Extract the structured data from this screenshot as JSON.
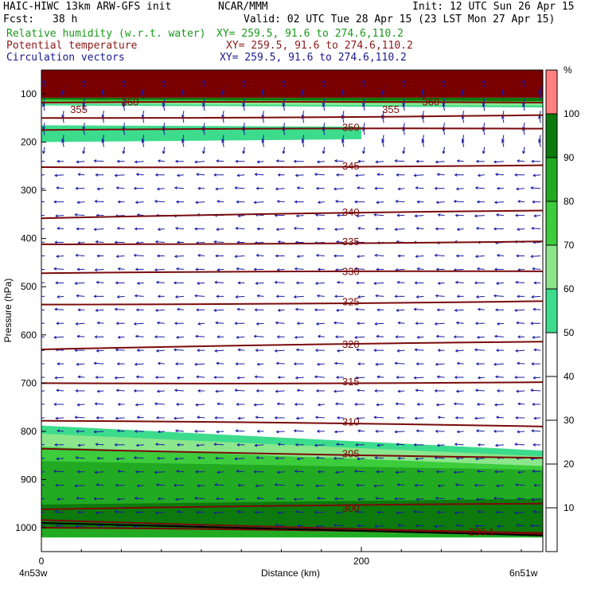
{
  "header": {
    "title": "HAIC-HIWC 13km ARW-GFS init",
    "org": "NCAR/MMM",
    "init": "Init: 12 UTC Sun 26 Apr 15",
    "fcst_label": "Fcst:",
    "fcst_value": "38 h",
    "valid": "Valid: 02 UTC Tue 28 Apr 15 (23 LST Mon 27 Apr 15)"
  },
  "fields": [
    {
      "name": "Relative humidity (w.r.t. water)",
      "xy": "XY= 259.5, 91.6 to 274.6,110.2",
      "color": "#1a9a1a"
    },
    {
      "name": "Potential temperature",
      "xy": "XY= 259.5, 91.6 to 274.6,110.2",
      "color": "#8b1a1a"
    },
    {
      "name": "Circulation vectors",
      "xy": "XY= 259.5, 91.6 to 274.6,110.2",
      "color": "#1a1a8a"
    }
  ],
  "colors": {
    "theta": "#7a0a0a",
    "vector": "#1a1aa0",
    "terrain": "#000000",
    "rh_levels": [
      "#ffffff",
      "#ffffff",
      "#ffffff",
      "#ffffff",
      "#ffffff",
      "#3cdc8c",
      "#8ce68c",
      "#3ccc3c",
      "#22aa22",
      "#0c7a0c",
      "#ff8080"
    ]
  },
  "chart_data": {
    "type": "heatmap",
    "description_axis_labels": true,
    "xlabel": "Distance (km)",
    "ylabel": "Pressure (hPa)",
    "x_ticks": [
      0,
      200
    ],
    "x_end_labels": [
      "4n53w",
      "6n51w"
    ],
    "xlim": [
      0,
      314
    ],
    "y_ticks": [
      100,
      200,
      300,
      400,
      500,
      600,
      700,
      800,
      900,
      1000
    ],
    "ylim": [
      50,
      1050
    ],
    "colorbar": {
      "unit": "%",
      "ticks": [
        10,
        20,
        30,
        40,
        50,
        60,
        70,
        80,
        90,
        100
      ],
      "range": [
        0,
        110
      ]
    },
    "theta_contours": [
      {
        "label": "360",
        "p_left": 118,
        "p_right": 118
      },
      {
        "label": "355",
        "p_left": 150,
        "p_right": 144
      },
      {
        "label": "350",
        "p_left": 175,
        "p_right": 172
      },
      {
        "label": "345",
        "p_left": 252,
        "p_right": 248
      },
      {
        "label": "340",
        "p_left": 358,
        "p_right": 342
      },
      {
        "label": "335",
        "p_left": 412,
        "p_right": 406
      },
      {
        "label": "330",
        "p_left": 472,
        "p_right": 468
      },
      {
        "label": "325",
        "p_left": 537,
        "p_right": 530
      },
      {
        "label": "320",
        "p_left": 630,
        "p_right": 614
      },
      {
        "label": "315",
        "p_left": 700,
        "p_right": 698
      },
      {
        "label": "310",
        "p_left": 778,
        "p_right": 790
      },
      {
        "label": "305",
        "p_left": 836,
        "p_right": 855
      },
      {
        "label": "300",
        "p_left": 962,
        "p_right": 950
      },
      {
        "label": "",
        "p_left": 984,
        "p_right": 1011
      },
      {
        "label": "299.1",
        "p_left": 1000,
        "p_right": 1013
      }
    ],
    "contour_labels": [
      {
        "text": "360",
        "x": 50,
        "p": 117
      },
      {
        "text": "360",
        "x": 238,
        "p": 117
      },
      {
        "text": "355",
        "x": 18,
        "p": 133
      },
      {
        "text": "355",
        "x": 213,
        "p": 133
      },
      {
        "text": "350",
        "x": 188,
        "p": 170
      },
      {
        "text": "345",
        "x": 188,
        "p": 250
      },
      {
        "text": "340",
        "x": 188,
        "p": 346
      },
      {
        "text": "335",
        "x": 188,
        "p": 407
      },
      {
        "text": "330",
        "x": 188,
        "p": 469
      },
      {
        "text": "325",
        "x": 188,
        "p": 532
      },
      {
        "text": "320",
        "x": 188,
        "p": 620
      },
      {
        "text": "315",
        "x": 188,
        "p": 698
      },
      {
        "text": "310",
        "x": 188,
        "p": 781
      },
      {
        "text": "305",
        "x": 188,
        "p": 847
      },
      {
        "text": "300",
        "x": 188,
        "p": 960
      },
      {
        "text": "299.1",
        "x": 267,
        "p": 1009
      }
    ],
    "rh_regions": [
      {
        "level": 110,
        "p_top_left": 50,
        "p_top_right": 50,
        "p_bot_left": 108,
        "p_bot_right": 108
      },
      {
        "level": 95,
        "p_top_left": 108,
        "p_top_right": 108,
        "p_bot_left": 112,
        "p_bot_right": 115
      },
      {
        "level": 75,
        "p_top_left": 112,
        "p_top_right": 115,
        "p_bot_left": 117,
        "p_bot_right": 120
      },
      {
        "level": 65,
        "p_top_left": 117,
        "p_top_right": 120,
        "p_bot_left": 121,
        "p_bot_right": 124
      },
      {
        "level": 55,
        "p_top_left": 121,
        "p_top_right": 124,
        "p_bot_left": 124,
        "p_bot_right": 128
      },
      {
        "level": 55,
        "p_top_left": 165,
        "p_top_right": 168,
        "p_bot_left": 200,
        "p_bot_right": 194,
        "x_end": 200
      },
      {
        "level": 55,
        "p_top_left": 788,
        "p_top_right": 840,
        "p_bot_left": 1020,
        "p_bot_right": 1020
      },
      {
        "level": 65,
        "p_top_left": 805,
        "p_top_right": 852,
        "p_bot_left": 1020,
        "p_bot_right": 1020
      },
      {
        "level": 75,
        "p_top_left": 832,
        "p_top_right": 872,
        "p_bot_left": 1020,
        "p_bot_right": 1020
      },
      {
        "level": 85,
        "p_top_left": 862,
        "p_top_right": 880,
        "p_bot_left": 1020,
        "p_bot_right": 1020
      },
      {
        "level": 95,
        "p_top_left": 952,
        "p_top_right": 940,
        "p_bot_left": 1000,
        "p_bot_right": 1013
      }
    ],
    "terrain_surface": {
      "p_left": 990,
      "p_right": 1016
    },
    "vectors": {
      "x_values": [
        2,
        14,
        27,
        39,
        52,
        64,
        77,
        89,
        102,
        114,
        127,
        139,
        152,
        164,
        177,
        189,
        202,
        214,
        227,
        239,
        252,
        264,
        277,
        289,
        302,
        312
      ],
      "p_values": [
        85,
        110,
        135,
        160,
        185,
        210,
        240,
        268,
        296,
        324,
        352,
        380,
        408,
        436,
        464,
        492,
        520,
        548,
        576,
        604,
        632,
        660,
        688,
        716,
        744,
        772,
        800,
        828,
        856,
        884,
        912,
        940,
        968,
        996
      ],
      "upper_direction": "up-down mixed",
      "lower_direction": "westward",
      "transition_p": 240
    }
  }
}
